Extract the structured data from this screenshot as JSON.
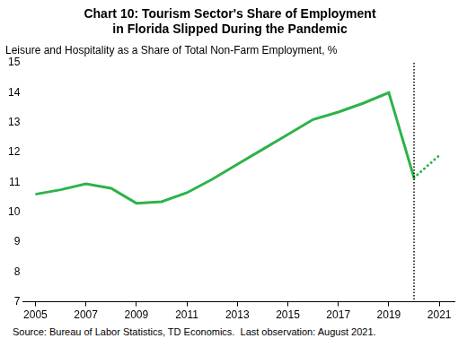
{
  "chart_data": {
    "type": "line",
    "title": [
      "Chart 10: Tourism Sector's Share of Employment",
      "in Florida Slipped During the Pandemic"
    ],
    "subtitle": "Leisure and Hospitality as a Share of Total Non-Farm Employment, %",
    "note": "Source: Bureau of Labor Statistics, TD Economics.  Last observation: August 2021.",
    "x": [
      2005,
      2006,
      2007,
      2008,
      2009,
      2010,
      2011,
      2012,
      2013,
      2014,
      2015,
      2016,
      2017,
      2018,
      2019,
      2020,
      2021
    ],
    "series": [
      {
        "color": "#2db34a",
        "line_style": "solid",
        "values": [
          10.6,
          10.75,
          10.95,
          10.8,
          10.3,
          10.35,
          10.65,
          11.1,
          11.6,
          12.1,
          12.6,
          13.1,
          13.35,
          13.65,
          14.0,
          11.15,
          null
        ]
      },
      {
        "color": "#2db34a",
        "line_style": "dotted",
        "values": [
          null,
          null,
          null,
          null,
          null,
          null,
          null,
          null,
          null,
          null,
          null,
          null,
          null,
          null,
          null,
          11.15,
          11.9
        ]
      }
    ],
    "vertical_line": {
      "x": 2020,
      "color": "#000000",
      "line_style": "dotted"
    },
    "xlim": [
      2004.5,
      2021.6
    ],
    "xticks": [
      2005,
      2007,
      2009,
      2011,
      2013,
      2015,
      2017,
      2019,
      2021
    ],
    "ylim": [
      7,
      15
    ],
    "yticks": [
      7,
      8,
      9,
      10,
      11,
      12,
      13,
      14,
      15
    ],
    "grid": false
  }
}
